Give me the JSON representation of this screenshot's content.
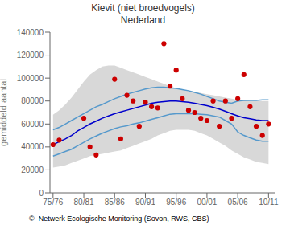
{
  "chart_data": {
    "type": "line",
    "title": "Kievit (niet broedvogels)",
    "subtitle": "Nederland",
    "y_label": "gemiddeld aantal",
    "annotations": [
      "©  Netwerk Ecologische Monitoring (Sovon, RWS, CBS)"
    ],
    "grid": false,
    "xlim": [
      -0.5,
      36
    ],
    "xticks": [
      {
        "value": 0,
        "label": "75/76"
      },
      {
        "value": 5,
        "label": "80/81"
      },
      {
        "value": 10,
        "label": "85/86"
      },
      {
        "value": 15,
        "label": "90/91"
      },
      {
        "value": 20,
        "label": "95/96"
      },
      {
        "value": 25,
        "label": "00/01"
      },
      {
        "value": 30,
        "label": "05/06"
      },
      {
        "value": 35,
        "label": "10/11"
      }
    ],
    "ylim": [
      0,
      140000
    ],
    "yticks": [
      0,
      20000,
      40000,
      60000,
      80000,
      100000,
      120000,
      140000
    ],
    "series": [
      {
        "type": "area",
        "color": "#d8d8d8",
        "x": [
          0,
          1,
          2,
          3,
          4,
          5,
          6,
          7,
          8,
          9,
          10,
          11,
          12,
          13,
          14,
          15,
          16,
          17,
          18,
          19,
          20,
          21,
          22,
          23,
          24,
          25,
          26,
          27,
          28,
          29,
          30,
          31,
          32,
          33,
          34,
          35
        ],
        "lower": [
          22000,
          23000,
          24000,
          26000,
          28000,
          30000,
          32000,
          33000,
          34000,
          35000,
          36000,
          37000,
          39000,
          41000,
          43000,
          45000,
          47000,
          50000,
          52000,
          54000,
          55000,
          55000,
          55000,
          54000,
          52000,
          50000,
          47000,
          44000,
          41000,
          37000,
          34000,
          31000,
          29000,
          27000,
          26000,
          25000
        ],
        "upper": [
          68000,
          72000,
          77000,
          83000,
          90000,
          97000,
          103000,
          107000,
          110000,
          111000,
          111000,
          109000,
          107000,
          105000,
          103000,
          101000,
          99000,
          97000,
          95000,
          93000,
          91000,
          90000,
          89000,
          88000,
          87000,
          86000,
          85000,
          84000,
          83000,
          82000,
          81000,
          80500,
          80000,
          80000,
          80000,
          80000
        ]
      },
      {
        "type": "line",
        "color": "#5599cc",
        "x": [
          0,
          1,
          2,
          3,
          4,
          5,
          6,
          7,
          8,
          9,
          10,
          11,
          12,
          13,
          14,
          15,
          16,
          17,
          18,
          19,
          20,
          21,
          22,
          23,
          24,
          25,
          26,
          27,
          28,
          29,
          30,
          31,
          32,
          33,
          34,
          35
        ],
        "values": [
          55000,
          57000,
          60000,
          63000,
          66000,
          69000,
          72000,
          75000,
          77000,
          79500,
          82000,
          84000,
          86000,
          87500,
          89000,
          90500,
          91500,
          92000,
          92000,
          91500,
          91000,
          90000,
          89000,
          87500,
          86000,
          84000,
          82000,
          80000,
          79000,
          78000,
          80000,
          80500,
          80500,
          80500,
          81000,
          81000
        ]
      },
      {
        "type": "line",
        "color": "#5599cc",
        "x": [
          0,
          1,
          2,
          3,
          4,
          5,
          6,
          7,
          8,
          9,
          10,
          11,
          12,
          13,
          14,
          15,
          16,
          17,
          18,
          19,
          20,
          21,
          22,
          23,
          24,
          25,
          26,
          27,
          28,
          29,
          30,
          31,
          32,
          33,
          34,
          35
        ],
        "values": [
          32000,
          34000,
          36000,
          38000,
          41000,
          44000,
          47000,
          49500,
          52000,
          54000,
          56000,
          57500,
          58500,
          60000,
          61000,
          62500,
          64000,
          65500,
          67000,
          68500,
          69000,
          69000,
          69000,
          69000,
          68500,
          68000,
          67000,
          66000,
          63000,
          60000,
          53000,
          50000,
          48000,
          46000,
          45000,
          45000
        ]
      },
      {
        "type": "line",
        "color": "#0000cc",
        "x": [
          0,
          1,
          2,
          3,
          4,
          5,
          6,
          7,
          8,
          9,
          10,
          11,
          12,
          13,
          14,
          15,
          16,
          17,
          18,
          19,
          20,
          21,
          22,
          23,
          24,
          25,
          26,
          27,
          28,
          29,
          30,
          31,
          32,
          33,
          34,
          35
        ],
        "values": [
          42000,
          44500,
          47000,
          50000,
          54000,
          57000,
          60000,
          62500,
          65000,
          67000,
          69000,
          70500,
          72000,
          73500,
          75000,
          76500,
          78000,
          79000,
          79500,
          80000,
          80000,
          79500,
          79000,
          78000,
          77000,
          76000,
          74500,
          73000,
          71000,
          69000,
          67000,
          65500,
          64500,
          63500,
          63000,
          63000
        ]
      },
      {
        "type": "scatter",
        "color": "#cc0000",
        "x": [
          0,
          1,
          5,
          6,
          7,
          10,
          11,
          12,
          13,
          14,
          15,
          16,
          17,
          18,
          19,
          20,
          21,
          22,
          23,
          24,
          25,
          26,
          27,
          28,
          29,
          30,
          31,
          32,
          33,
          34,
          35
        ],
        "values": [
          42000,
          46000,
          65000,
          40000,
          33000,
          99000,
          47000,
          85000,
          80000,
          58000,
          79000,
          75000,
          74000,
          130000,
          93000,
          107000,
          82000,
          72000,
          70000,
          65000,
          63000,
          80000,
          58000,
          80000,
          65000,
          82000,
          103000,
          75000,
          58000,
          50000,
          60000
        ]
      }
    ]
  }
}
